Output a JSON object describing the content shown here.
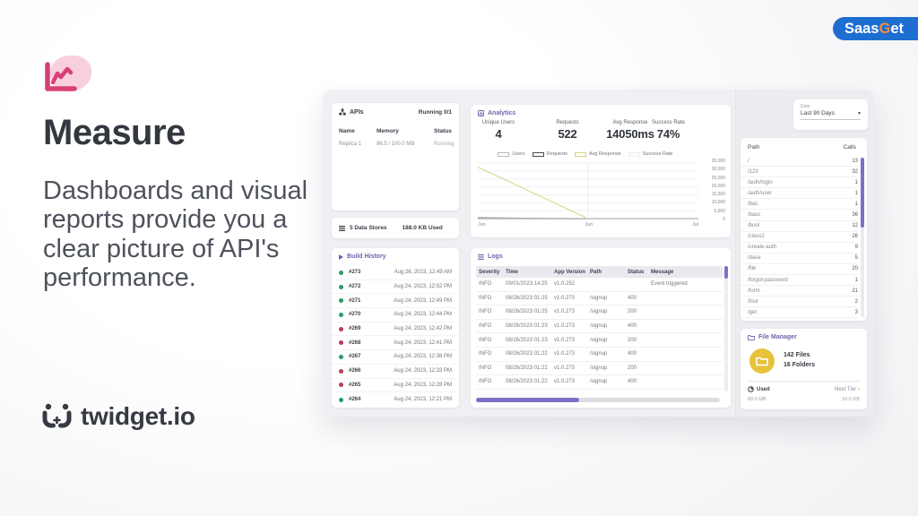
{
  "badge": {
    "part1": "Saas",
    "part2": "G",
    "part3": "et"
  },
  "hero": {
    "title": "Measure",
    "description": "Dashboards and visual reports provide you a clear picture of API's performance.",
    "logo_text": "twidget.io"
  },
  "icons": {
    "dropdown_caret": "▾",
    "next_tier_chevron": "›"
  },
  "colors": {
    "accent_purple": "#6a64ad",
    "scrollbar_purple": "#7b70c9",
    "success_green": "#279e60",
    "failed_red": "#bf3c50",
    "badge_blue": "#1e6ed2",
    "badge_orange": "#f08a3c",
    "brand_pink": "#d64077",
    "folder_yellow": "#e7c33c"
  },
  "dashboard": {
    "apis": {
      "title": "APIs",
      "running_label": "Running 0/1",
      "columns": [
        "Name",
        "Memory",
        "Status"
      ],
      "rows": [
        {
          "name": "Replica 1",
          "memory": "96.5 / 100.0 MB",
          "status": "Running"
        }
      ]
    },
    "data_stores": {
      "count_label": "5 Data Stores",
      "used_label": "188.0 KB Used"
    },
    "build_history": {
      "title": "Build History",
      "builds": [
        {
          "id": "#273",
          "status": "success",
          "color": "#279e60",
          "date": "Aug 26, 2023, 12:49 AM"
        },
        {
          "id": "#272",
          "status": "success",
          "color": "#279e60",
          "date": "Aug 24, 2023, 12:52 PM"
        },
        {
          "id": "#271",
          "status": "success",
          "color": "#279e60",
          "date": "Aug 24, 2023, 12:49 PM"
        },
        {
          "id": "#270",
          "status": "success",
          "color": "#279e60",
          "date": "Aug 24, 2023, 12:44 PM"
        },
        {
          "id": "#269",
          "status": "failed",
          "color": "#bf3c50",
          "date": "Aug 24, 2023, 12:42 PM"
        },
        {
          "id": "#268",
          "status": "failed",
          "color": "#bf3c50",
          "date": "Aug 24, 2023, 12:41 PM"
        },
        {
          "id": "#267",
          "status": "success",
          "color": "#279e60",
          "date": "Aug 24, 2023, 12:38 PM"
        },
        {
          "id": "#266",
          "status": "failed",
          "color": "#bf3c50",
          "date": "Aug 24, 2023, 12:33 PM"
        },
        {
          "id": "#265",
          "status": "failed",
          "color": "#bf3c50",
          "date": "Aug 24, 2023, 12:28 PM"
        },
        {
          "id": "#264",
          "status": "success",
          "color": "#279e60",
          "date": "Aug 24, 2023, 12:21 PM"
        }
      ]
    },
    "analytics": {
      "title": "Analytics",
      "stats": [
        {
          "label": "Unique Users",
          "value": "4"
        },
        {
          "label": "Requests",
          "value": "522"
        },
        {
          "label": "Avg Response",
          "value": "14050ms"
        },
        {
          "label": "Success Rate",
          "value": "74%"
        }
      ]
    },
    "logs": {
      "title": "Logs",
      "columns": [
        "Severity",
        "Time",
        "App Version",
        "Path",
        "Status",
        "Message"
      ],
      "rows": [
        {
          "severity": "INFO",
          "time": "09/01/2023 14:25",
          "version": "v1.0.252",
          "path": "",
          "status": "",
          "message": "Event triggered"
        },
        {
          "severity": "INFO",
          "time": "08/26/2023 01:25",
          "version": "v1.0.273",
          "path": "/signup",
          "status": "400",
          "message": ""
        },
        {
          "severity": "INFO",
          "time": "08/26/2023 01:25",
          "version": "v1.0.273",
          "path": "/signup",
          "status": "200",
          "message": ""
        },
        {
          "severity": "INFO",
          "time": "08/26/2023 01:23",
          "version": "v1.0.273",
          "path": "/signup",
          "status": "400",
          "message": ""
        },
        {
          "severity": "INFO",
          "time": "08/26/2023 01:23",
          "version": "v1.0.273",
          "path": "/signup",
          "status": "200",
          "message": ""
        },
        {
          "severity": "INFO",
          "time": "08/26/2023 01:22",
          "version": "v1.0.273",
          "path": "/signup",
          "status": "400",
          "message": ""
        },
        {
          "severity": "INFO",
          "time": "08/26/2023 01:22",
          "version": "v1.0.273",
          "path": "/signup",
          "status": "200",
          "message": ""
        },
        {
          "severity": "INFO",
          "time": "08/26/2023 01:22",
          "version": "v1.0.273",
          "path": "/signup",
          "status": "400",
          "message": ""
        }
      ]
    },
    "date_filter": {
      "label": "Date",
      "value": "Last 90 Days"
    },
    "paths": {
      "columns": [
        "Path",
        "Calls"
      ],
      "rows": [
        {
          "path": "/",
          "calls": "13"
        },
        {
          "path": "/123",
          "calls": "32"
        },
        {
          "path": "/auth/login",
          "calls": "1"
        },
        {
          "path": "/auth/user",
          "calls": "1"
        },
        {
          "path": "/bac",
          "calls": "1"
        },
        {
          "path": "/basc",
          "calls": "36"
        },
        {
          "path": "/bool",
          "calls": "12"
        },
        {
          "path": "/class2",
          "calls": "26"
        },
        {
          "path": "/create-auth",
          "calls": "9"
        },
        {
          "path": "/dase",
          "calls": "5"
        },
        {
          "path": "/file",
          "calls": "20"
        },
        {
          "path": "/forgot-password",
          "calls": "1"
        },
        {
          "path": "/form",
          "calls": "21"
        },
        {
          "path": "/four",
          "calls": "2"
        },
        {
          "path": "/get",
          "calls": "3"
        }
      ]
    },
    "file_manager": {
      "title": "File Manager",
      "files_label": "142 Files",
      "folders_label": "16 Folders",
      "used_label": "Used",
      "used_value": "60.0 MB",
      "next_tier_label": "Next Tier",
      "next_tier_value": "10.0 GB"
    }
  },
  "chart_data": {
    "type": "line",
    "title": "Analytics",
    "x_labels": [
      "Jun",
      "Jun",
      "Jul"
    ],
    "y_ticks": [
      35000,
      30000,
      25000,
      20000,
      15000,
      10000,
      5000,
      0
    ],
    "y_tick_labels": [
      "35,000",
      "30,000",
      "25,000",
      "20,000",
      "15,000",
      "10,000",
      "5,000",
      "0"
    ],
    "ylim": [
      0,
      35000
    ],
    "grid": true,
    "legend_position": "top",
    "series": [
      {
        "name": "Users",
        "color": "#b9bac3",
        "values": [
          4,
          4,
          4
        ]
      },
      {
        "name": "Requests",
        "color": "#3d4756",
        "values": [
          522,
          10,
          10
        ]
      },
      {
        "name": "Avg Response",
        "color": "#d6d37f",
        "values": [
          32500,
          0,
          0
        ]
      },
      {
        "name": "Success Rate",
        "color": "#ededed",
        "values": [
          74,
          74,
          74
        ]
      }
    ]
  }
}
